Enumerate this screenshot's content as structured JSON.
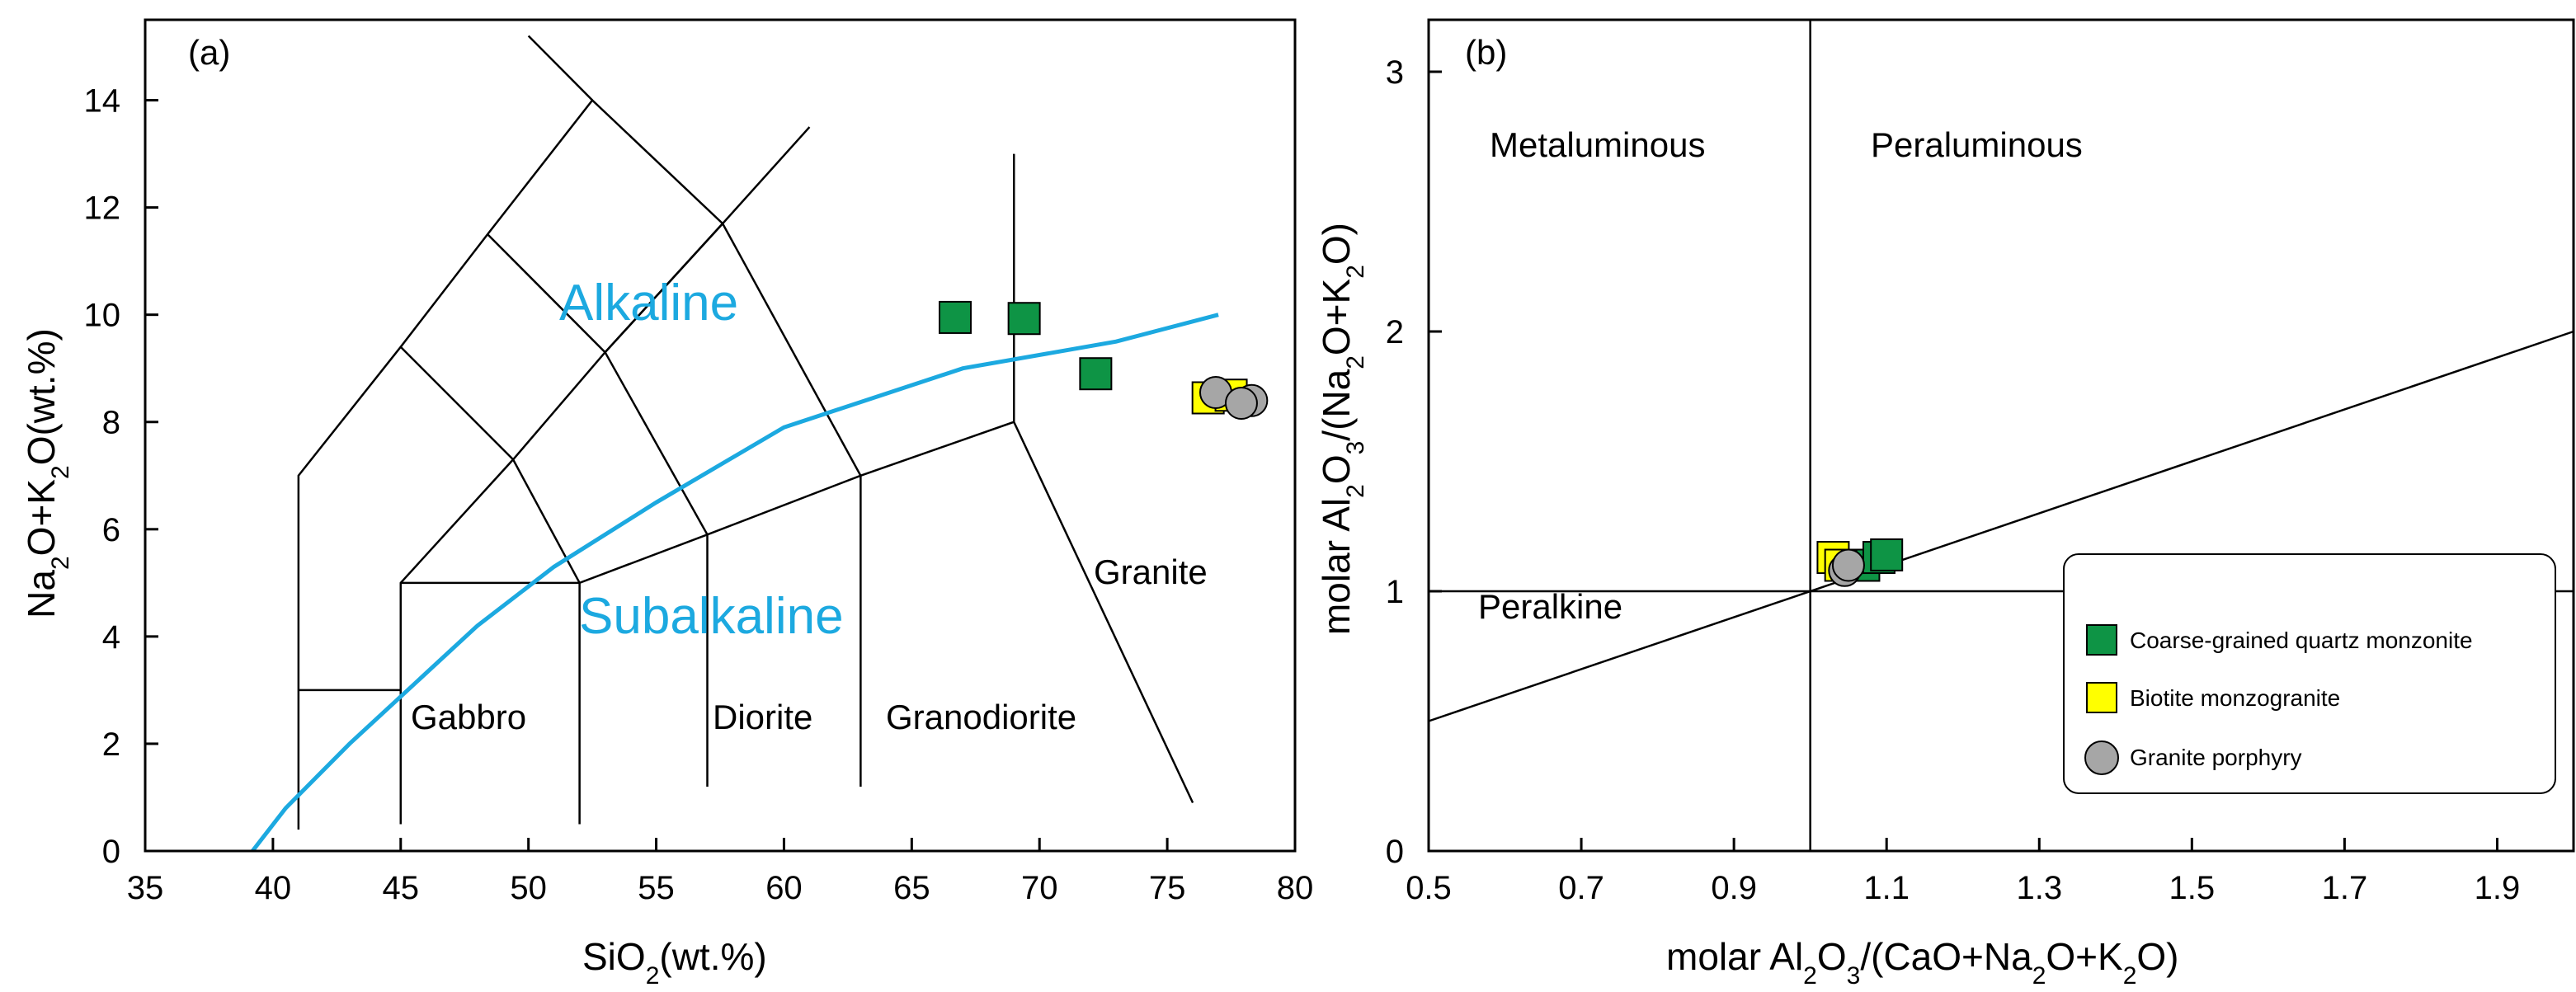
{
  "chart_data": [
    {
      "panel": "(a)",
      "type": "scatter",
      "xlabel_parts": [
        "SiO",
        "2",
        "(wt.%)"
      ],
      "ylabel_parts": [
        "Na",
        "2",
        "O+K",
        "2",
        "O(wt.%)"
      ],
      "xlim": [
        35,
        80
      ],
      "ylim": [
        0,
        15.5
      ],
      "xticks": [
        35,
        40,
        45,
        50,
        55,
        60,
        65,
        70,
        75,
        80
      ],
      "yticks": [
        0,
        2,
        4,
        6,
        8,
        10,
        12,
        14
      ],
      "fields": [
        "Gabbro",
        "Diorite",
        "Granodiorite",
        "Granite"
      ],
      "series_labels": {
        "upper": "Alkaline",
        "lower": "Subalkaline"
      },
      "series_line_color": "#1ca9e0",
      "divider_curve": [
        [
          39.2,
          0
        ],
        [
          40.5,
          0.8
        ],
        [
          43,
          2
        ],
        [
          45.5,
          3.1
        ],
        [
          48,
          4.2
        ],
        [
          51,
          5.3
        ],
        [
          55,
          6.5
        ],
        [
          60,
          7.9
        ],
        [
          67,
          9.0
        ],
        [
          73,
          9.5
        ],
        [
          77,
          10.0
        ]
      ],
      "series": [
        {
          "name": "Coarse-grained quartz monzonite",
          "marker": "square",
          "color": "#0e9445",
          "points": [
            [
              66.7,
              9.95
            ],
            [
              69.4,
              9.93
            ],
            [
              72.2,
              8.9
            ]
          ]
        },
        {
          "name": "Biotite monzogranite",
          "marker": "square",
          "color": "#ffff00",
          "points": [
            [
              76.6,
              8.45
            ],
            [
              77.5,
              8.5
            ]
          ]
        },
        {
          "name": "Granite porphyry",
          "marker": "circle",
          "color": "#a6a6a6",
          "points": [
            [
              76.9,
              8.55
            ],
            [
              78.3,
              8.4
            ],
            [
              77.9,
              8.35
            ]
          ]
        }
      ]
    },
    {
      "panel": "(b)",
      "type": "scatter",
      "xlabel_parts": [
        "molar Al",
        "2",
        "O",
        "3",
        "/(CaO+Na",
        "2",
        "O+K",
        "2",
        "O)"
      ],
      "ylabel_parts": [
        "molar Al",
        "2",
        "O",
        "3",
        "/(Na",
        "2",
        "O+K",
        "2",
        "O)"
      ],
      "xlim": [
        0.5,
        2.0
      ],
      "ylim": [
        0,
        3.2
      ],
      "xticks": [
        0.5,
        0.7,
        0.9,
        1.1,
        1.3,
        1.5,
        1.7,
        1.9
      ],
      "yticks": [
        0,
        1,
        2,
        3
      ],
      "fields": [
        "Metaluminous",
        "Peraluminous",
        "Peralkine"
      ],
      "legend": {
        "position": "bottom-right",
        "items": [
          "Coarse-grained quartz monzonite",
          "Biotite monzogranite",
          "Granite porphyry"
        ]
      },
      "series": [
        {
          "name": "Coarse-grained quartz monzonite",
          "marker": "square",
          "color": "#0e9445",
          "points": [
            [
              1.07,
              1.1
            ],
            [
              1.09,
              1.13
            ],
            [
              1.1,
              1.14
            ]
          ]
        },
        {
          "name": "Biotite monzogranite",
          "marker": "square",
          "color": "#ffff00",
          "points": [
            [
              1.03,
              1.13
            ],
            [
              1.04,
              1.1
            ]
          ]
        },
        {
          "name": "Granite porphyry",
          "marker": "circle",
          "color": "#a6a6a6",
          "points": [
            [
              1.045,
              1.08
            ],
            [
              1.05,
              1.1
            ]
          ]
        }
      ]
    }
  ]
}
